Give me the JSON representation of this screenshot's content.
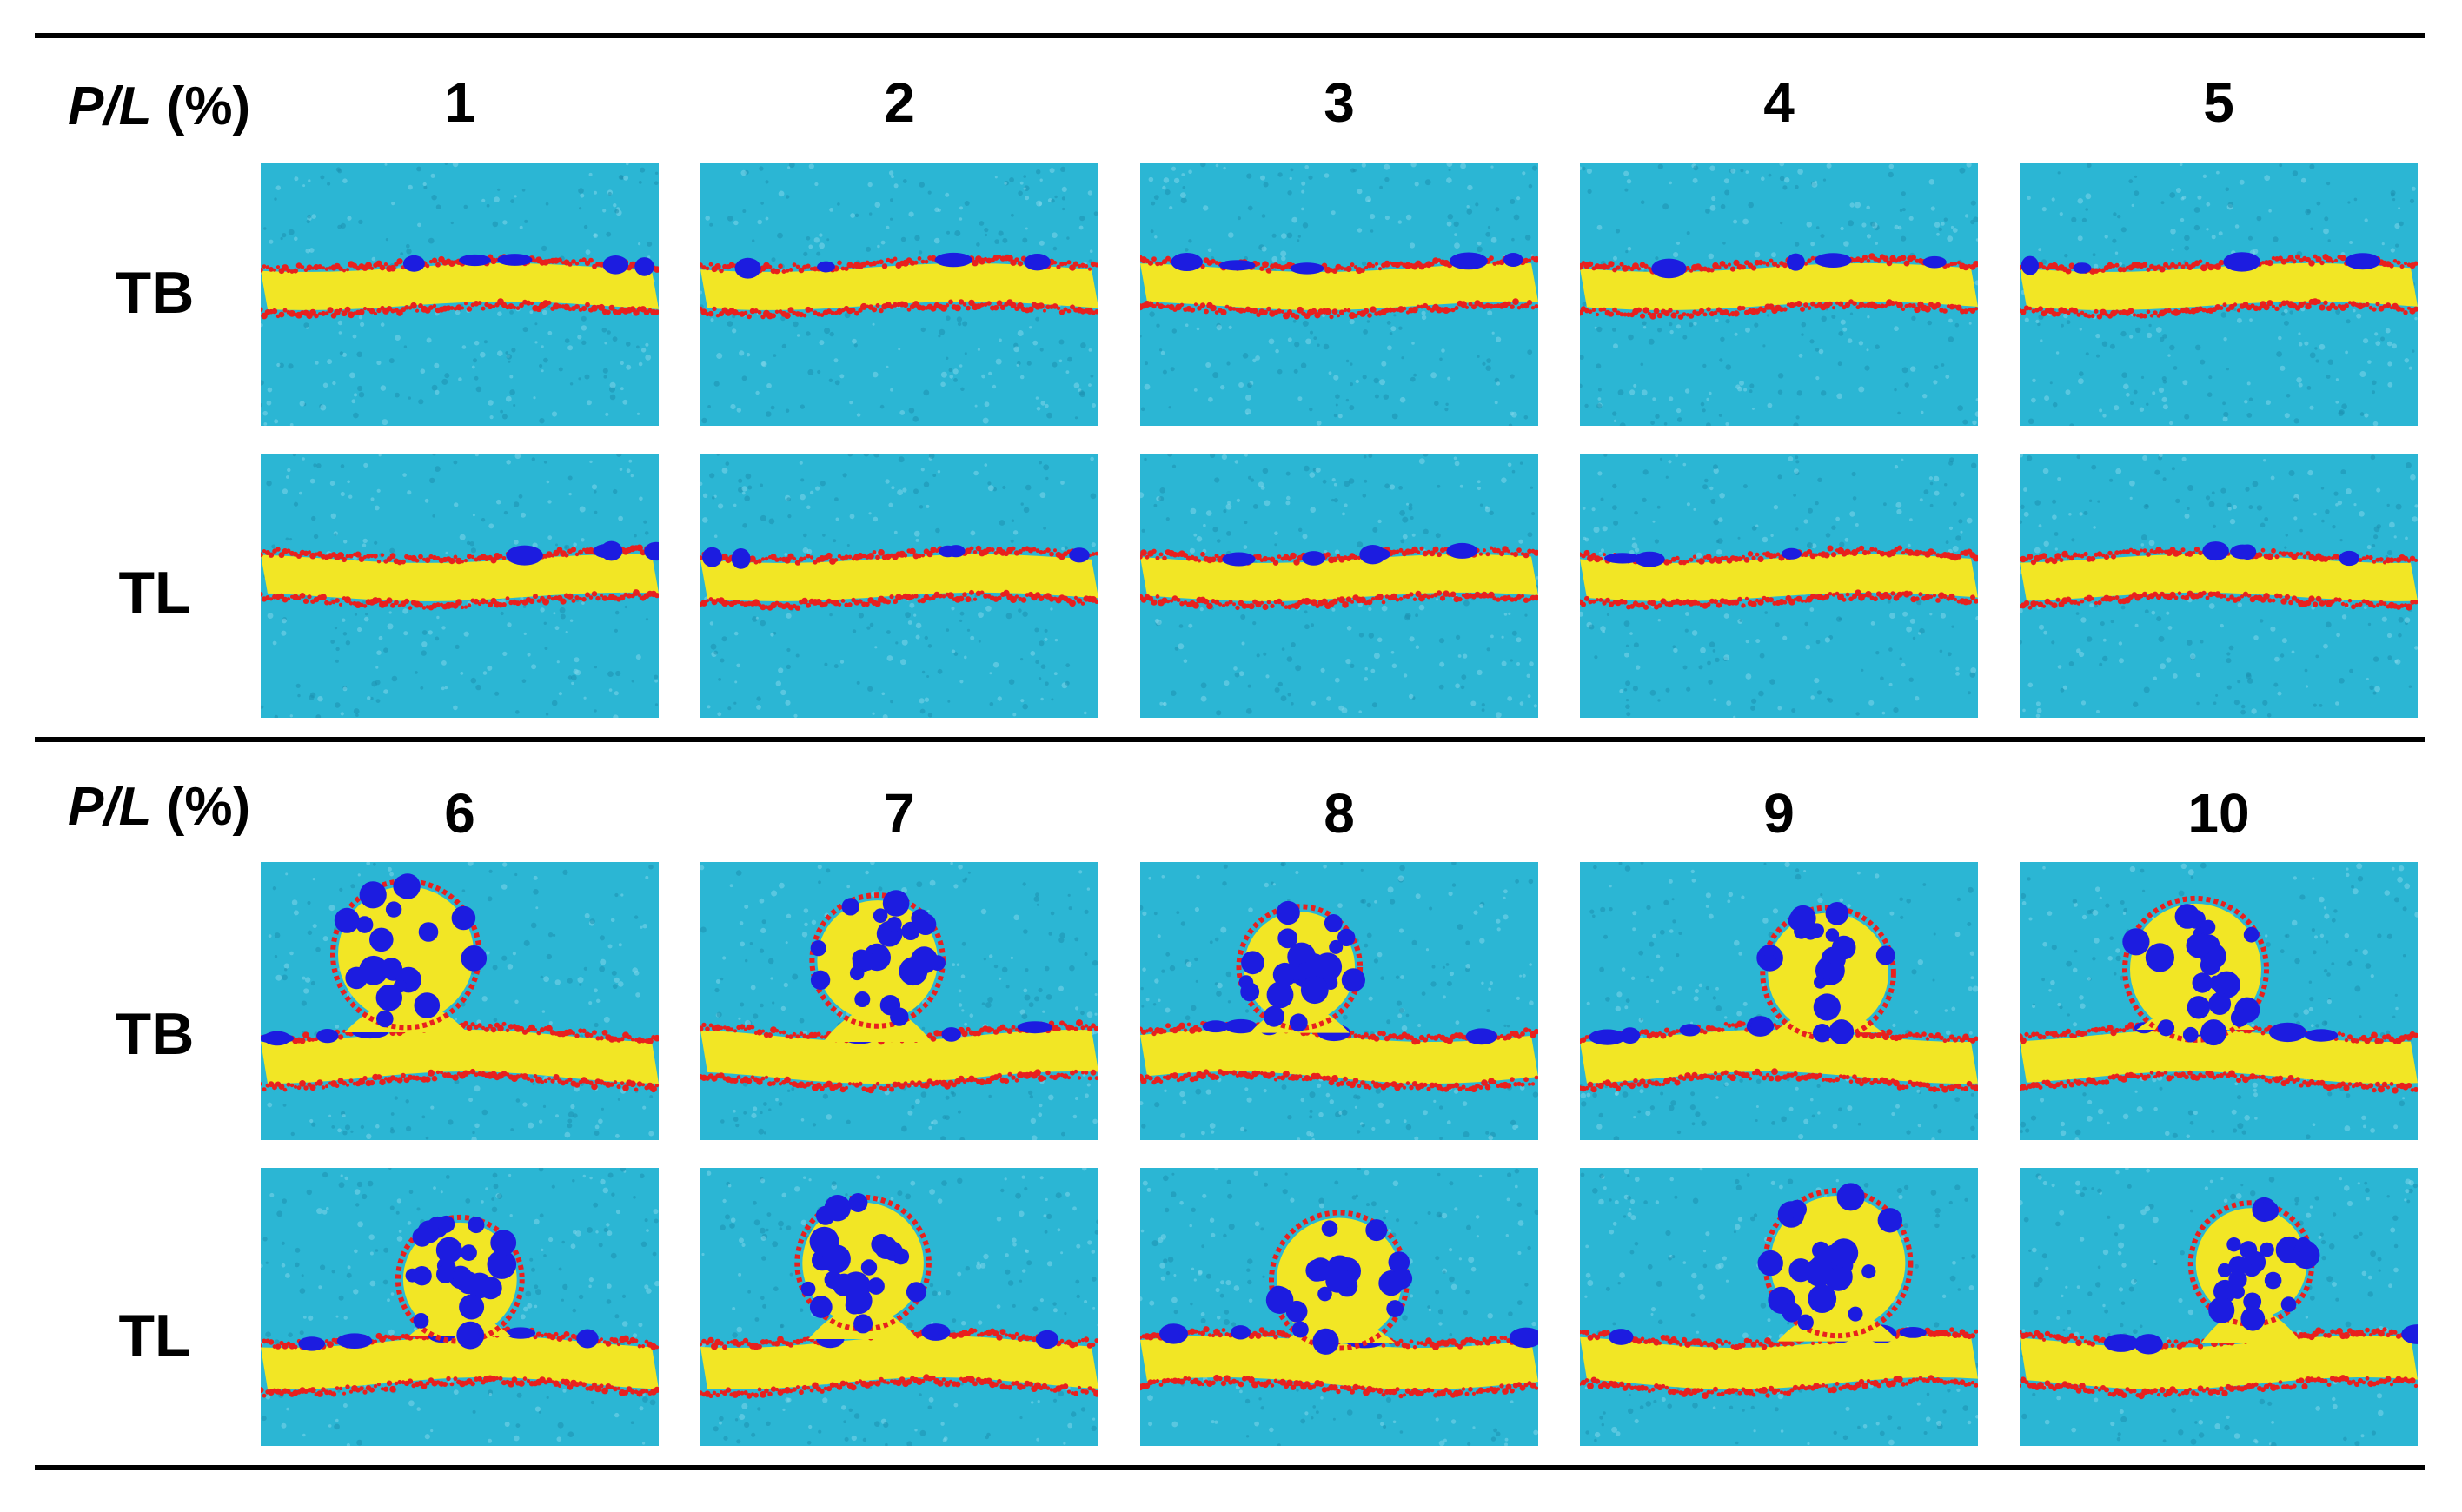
{
  "header": {
    "label_var": "P/L",
    "label_unit": " (%)"
  },
  "columns_top": [
    "1",
    "2",
    "3",
    "4",
    "5"
  ],
  "columns_bottom": [
    "6",
    "7",
    "8",
    "9",
    "10"
  ],
  "rows": [
    "TB",
    "TL"
  ],
  "colors": {
    "water": "#2bb6d4",
    "water_dots": "#7fd6ea",
    "lipid_tail": "#f2e625",
    "lipid_head": "#e8201e",
    "peptide": "#1c1ce0"
  },
  "panels": [
    {
      "id": "TB-1",
      "structure": "flat bilayer"
    },
    {
      "id": "TB-2",
      "structure": "flat bilayer"
    },
    {
      "id": "TB-3",
      "structure": "flat bilayer"
    },
    {
      "id": "TB-4",
      "structure": "flat bilayer"
    },
    {
      "id": "TB-5",
      "structure": "flat bilayer"
    },
    {
      "id": "TL-1",
      "structure": "flat bilayer"
    },
    {
      "id": "TL-2",
      "structure": "flat bilayer"
    },
    {
      "id": "TL-3",
      "structure": "flat bilayer"
    },
    {
      "id": "TL-4",
      "structure": "flat bilayer"
    },
    {
      "id": "TL-5",
      "structure": "flat bilayer"
    },
    {
      "id": "TB-6",
      "structure": "budding vesicle"
    },
    {
      "id": "TB-7",
      "structure": "budding vesicle"
    },
    {
      "id": "TB-8",
      "structure": "budding vesicle"
    },
    {
      "id": "TB-9",
      "structure": "budding vesicle"
    },
    {
      "id": "TB-10",
      "structure": "budding vesicle"
    },
    {
      "id": "TL-6",
      "structure": "budding vesicle"
    },
    {
      "id": "TL-7",
      "structure": "budding vesicle"
    },
    {
      "id": "TL-8",
      "structure": "budding vesicle"
    },
    {
      "id": "TL-9",
      "structure": "budding vesicle"
    },
    {
      "id": "TL-10",
      "structure": "budding vesicle"
    }
  ]
}
